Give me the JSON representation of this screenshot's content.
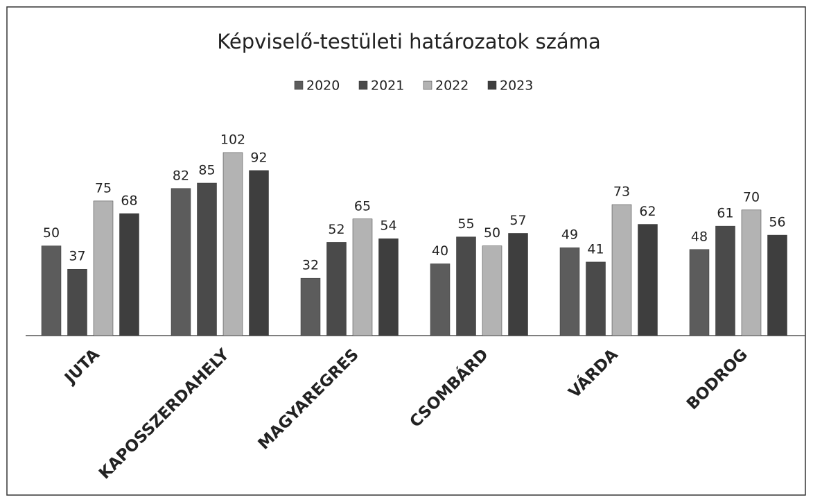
{
  "chart_data": {
    "type": "bar",
    "title": "Képviselő-testületi határozatok száma",
    "categories": [
      "JUTA",
      "KAPOSSZERDAHELY",
      "MAGYAREGRES",
      "CSOMBÁRD",
      "VÁRDA",
      "BODROG"
    ],
    "series": [
      {
        "name": "2020",
        "color": "#5c5c5c",
        "values": [
          50,
          82,
          32,
          40,
          49,
          48
        ]
      },
      {
        "name": "2021",
        "color": "#4a4a4a",
        "values": [
          37,
          85,
          52,
          55,
          41,
          61
        ]
      },
      {
        "name": "2022",
        "color": "#b3b3b3",
        "values": [
          75,
          102,
          65,
          50,
          73,
          70
        ]
      },
      {
        "name": "2023",
        "color": "#3e3e3e",
        "values": [
          68,
          92,
          54,
          57,
          62,
          56
        ]
      }
    ],
    "legend": "top"
  }
}
